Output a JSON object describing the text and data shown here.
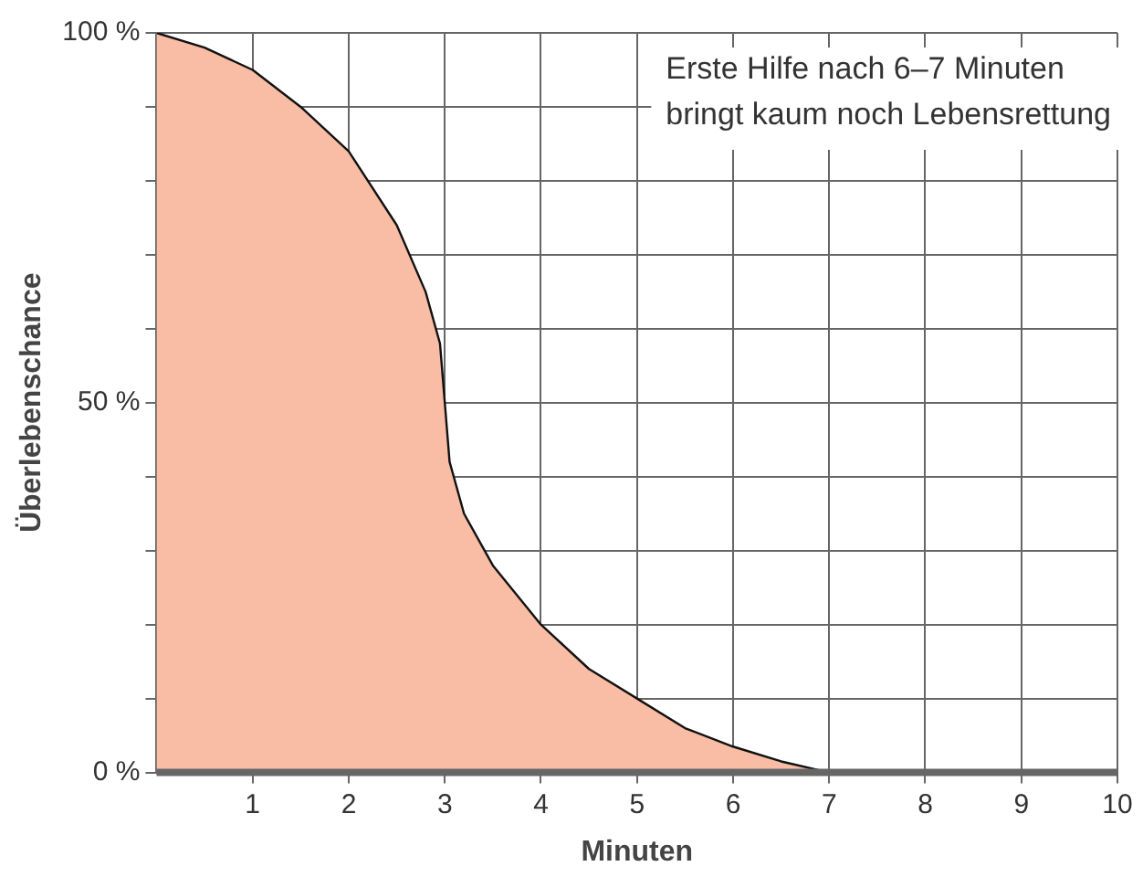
{
  "chart_data": {
    "type": "area",
    "xlabel": "Minuten",
    "ylabel": "Überlebenschance",
    "x": [
      0,
      0.5,
      1,
      1.5,
      2,
      2.5,
      2.8,
      2.95,
      3,
      3.05,
      3.2,
      3.5,
      4,
      4.5,
      5,
      5.5,
      6,
      6.5,
      7,
      8,
      9,
      10
    ],
    "series": [
      {
        "color": "#f9bca5",
        "values": [
          100,
          98,
          95,
          90,
          84,
          74,
          65,
          58,
          50,
          42,
          35,
          28,
          20,
          14,
          10,
          6,
          3.5,
          1.5,
          0,
          0,
          0,
          0
        ]
      }
    ],
    "xlim": [
      0,
      10
    ],
    "ylim": [
      0,
      100
    ],
    "xticks": [
      1,
      2,
      3,
      4,
      5,
      6,
      7,
      8,
      9,
      10
    ],
    "yticks": [
      {
        "value": 0,
        "label": "0 %"
      },
      {
        "value": 10,
        "label": null
      },
      {
        "value": 20,
        "label": null
      },
      {
        "value": 30,
        "label": null
      },
      {
        "value": 40,
        "label": null
      },
      {
        "value": 50,
        "label": "50 %"
      },
      {
        "value": 60,
        "label": null
      },
      {
        "value": 70,
        "label": null
      },
      {
        "value": 80,
        "label": null
      },
      {
        "value": 90,
        "label": null
      },
      {
        "value": 100,
        "label": "100 %"
      }
    ],
    "grid": true,
    "legend": false,
    "annotations": [
      "Erste Hilfe nach 6–7 Minuten\nbringt kaum noch Lebensrettung"
    ]
  }
}
